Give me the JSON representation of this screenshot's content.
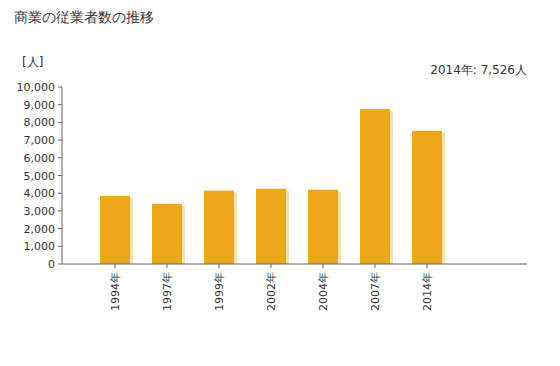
{
  "chart_data": {
    "type": "bar",
    "title": "商業の従業者数の推移",
    "y_label": "[人]",
    "annotation": "2014年: 7,526人",
    "categories": [
      "1994年",
      "1997年",
      "1999年",
      "2002年",
      "2004年",
      "2007年",
      "2014年"
    ],
    "values": [
      3850,
      3400,
      4150,
      4250,
      4200,
      8750,
      7526
    ],
    "color": "#eaa81a",
    "ylim": [
      0,
      10000
    ],
    "yticks": [
      0,
      {
        "value": 1000,
        "label": "1,000"
      },
      {
        "value": 2000,
        "label": "2,000"
      },
      {
        "value": 3000,
        "label": "3,000"
      },
      {
        "value": 4000,
        "label": "4,000"
      },
      {
        "value": 5000,
        "label": "5,000"
      },
      {
        "value": 6000,
        "label": "6,000"
      },
      {
        "value": 7000,
        "label": "7,000"
      },
      {
        "value": 8000,
        "label": "8,000"
      },
      {
        "value": 9000,
        "label": "9,000"
      },
      {
        "value": 10000,
        "label": "10,000"
      }
    ],
    "grid": false
  }
}
